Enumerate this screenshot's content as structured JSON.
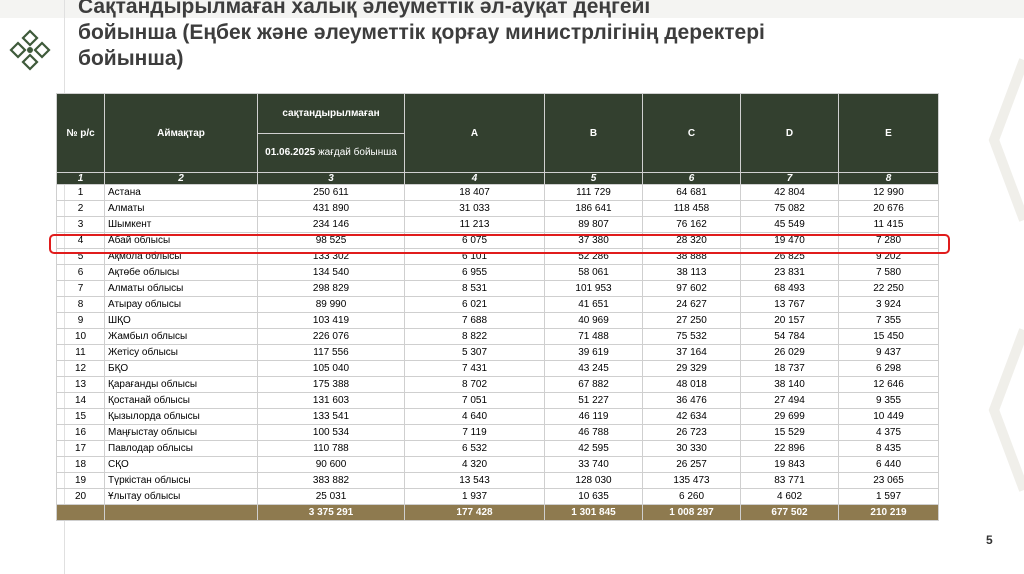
{
  "title_lines": [
    "Сақтандырылмаған халық әлеуметтік әл-ауқат деңгейі",
    "бойынша  (Еңбек және әлеуметтік қорғау министрлігінің деректері",
    "бойынша)"
  ],
  "page_number": "5",
  "table": {
    "headers": {
      "num": "№   р/с",
      "region": "Аймақтар",
      "uninsured": "сақтандырылмаған",
      "date_bold": "01.06.2025",
      "date_rest": " жағдай бойынша",
      "A": "A",
      "B": "B",
      "C": "C",
      "D": "D",
      "E": "E"
    },
    "col_numbers": [
      "1",
      "2",
      "3",
      "4",
      "5",
      "6",
      "7",
      "8"
    ],
    "rows": [
      {
        "n": "1",
        "region": "Астана",
        "total": "250 611",
        "a": "18 407",
        "b": "111 729",
        "c": "64 681",
        "d": "42 804",
        "e": "12 990"
      },
      {
        "n": "2",
        "region": "Алматы",
        "total": "431 890",
        "a": "31 033",
        "b": "186 641",
        "c": "118 458",
        "d": "75 082",
        "e": "20 676"
      },
      {
        "n": "3",
        "region": "Шымкент",
        "total": "234 146",
        "a": "11 213",
        "b": "89 807",
        "c": "76 162",
        "d": "45 549",
        "e": "11 415"
      },
      {
        "n": "4",
        "region": "Абай облысы",
        "total": "98 525",
        "a": "6 075",
        "b": "37 380",
        "c": "28 320",
        "d": "19 470",
        "e": "7 280"
      },
      {
        "n": "5",
        "region": "Ақмола облысы",
        "total": "133 302",
        "a": "6 101",
        "b": "52 286",
        "c": "38 888",
        "d": "26 825",
        "e": "9 202"
      },
      {
        "n": "6",
        "region": "Ақтөбе облысы",
        "total": "134 540",
        "a": "6 955",
        "b": "58 061",
        "c": "38 113",
        "d": "23 831",
        "e": "7 580"
      },
      {
        "n": "7",
        "region": "Алматы облысы",
        "total": "298 829",
        "a": "8 531",
        "b": "101 953",
        "c": "97 602",
        "d": "68 493",
        "e": "22 250"
      },
      {
        "n": "8",
        "region": "Атырау облысы",
        "total": "89 990",
        "a": "6 021",
        "b": "41 651",
        "c": "24 627",
        "d": "13 767",
        "e": "3 924"
      },
      {
        "n": "9",
        "region": "ШҚО",
        "total": "103 419",
        "a": "7 688",
        "b": "40 969",
        "c": "27 250",
        "d": "20 157",
        "e": "7 355"
      },
      {
        "n": "10",
        "region": "Жамбыл облысы",
        "total": "226 076",
        "a": "8 822",
        "b": "71 488",
        "c": "75 532",
        "d": "54 784",
        "e": "15 450"
      },
      {
        "n": "11",
        "region": "Жетісу облысы",
        "total": "117 556",
        "a": "5 307",
        "b": "39 619",
        "c": "37 164",
        "d": "26 029",
        "e": "9 437"
      },
      {
        "n": "12",
        "region": "БҚО",
        "total": "105 040",
        "a": "7 431",
        "b": "43 245",
        "c": "29 329",
        "d": "18 737",
        "e": "6 298"
      },
      {
        "n": "13",
        "region": "Қарағанды облысы",
        "total": "175 388",
        "a": "8 702",
        "b": "67 882",
        "c": "48 018",
        "d": "38 140",
        "e": "12 646"
      },
      {
        "n": "14",
        "region": "Қостанай облысы",
        "total": "131 603",
        "a": "7 051",
        "b": "51 227",
        "c": "36 476",
        "d": "27 494",
        "e": "9 355"
      },
      {
        "n": "15",
        "region": "Қызылорда облысы",
        "total": "133 541",
        "a": "4 640",
        "b": "46 119",
        "c": "42 634",
        "d": "29 699",
        "e": "10 449"
      },
      {
        "n": "16",
        "region": "Маңғыстау облысы",
        "total": "100 534",
        "a": "7 119",
        "b": "46 788",
        "c": "26 723",
        "d": "15 529",
        "e": "4 375"
      },
      {
        "n": "17",
        "region": "Павлодар облысы",
        "total": "110 788",
        "a": "6 532",
        "b": "42 595",
        "c": "30 330",
        "d": "22 896",
        "e": "8 435"
      },
      {
        "n": "18",
        "region": "СҚО",
        "total": "90 600",
        "a": "4 320",
        "b": "33 740",
        "c": "26 257",
        "d": "19 843",
        "e": "6 440"
      },
      {
        "n": "19",
        "region": "Түркістан облысы",
        "total": "383 882",
        "a": "13 543",
        "b": "128 030",
        "c": "135 473",
        "d": "83 771",
        "e": "23 065"
      },
      {
        "n": "20",
        "region": "Ұлытау облысы",
        "total": "25 031",
        "a": "1 937",
        "b": "10 635",
        "c": "6 260",
        "d": "4 602",
        "e": "1 597"
      }
    ],
    "totals": {
      "n": "",
      "region": "",
      "total": "3 375 291",
      "a": "177 428",
      "b": "1 301 845",
      "c": "1 008 297",
      "d": "677 502",
      "e": "210 219"
    }
  },
  "colors": {
    "header_bg": "#33402f",
    "total_bg": "#8e7a4f",
    "highlight": "#e01c1c",
    "logo": "#3e5a3a"
  },
  "highlighted_row_index": 3,
  "icons": [
    "logo-icon",
    "corner-decoration-icon"
  ]
}
